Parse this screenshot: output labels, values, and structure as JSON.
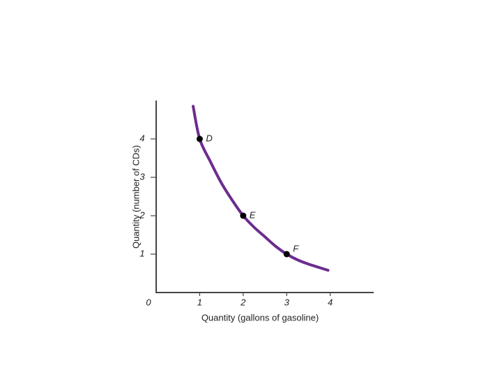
{
  "chart_data": {
    "type": "line",
    "x_label": "Quantity (gallons of gasoline)",
    "y_label": "Quantity (number of CDs)",
    "xlim": [
      0,
      5
    ],
    "ylim": [
      0,
      5
    ],
    "xticks": [
      0,
      1,
      2,
      3,
      4
    ],
    "yticks": [
      1,
      2,
      3,
      4
    ],
    "series": [
      {
        "color": "#6c2c8f",
        "x": [
          0.85,
          1,
          1.25,
          1.5,
          1.75,
          2,
          2.25,
          2.5,
          2.75,
          3,
          3.25,
          3.5,
          3.75,
          3.95
        ],
        "values": [
          4.85,
          4,
          3.4,
          2.85,
          2.4,
          2,
          1.7,
          1.45,
          1.2,
          1,
          0.85,
          0.74,
          0.65,
          0.58
        ]
      }
    ],
    "points": {
      "color": "#000000",
      "labels": [
        "D",
        "E",
        "F"
      ],
      "x": [
        1,
        2,
        3
      ],
      "values": [
        4,
        2,
        1
      ]
    }
  }
}
